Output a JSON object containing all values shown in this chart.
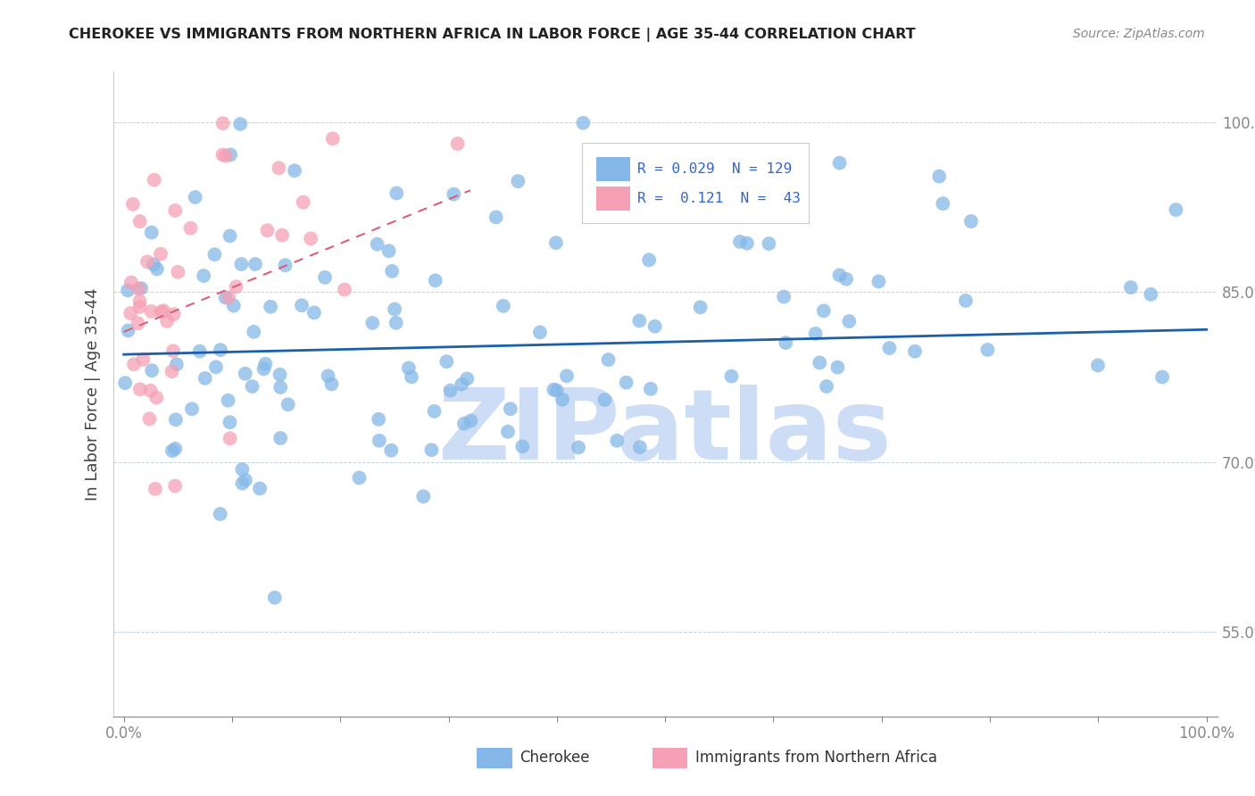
{
  "title": "CHEROKEE VS IMMIGRANTS FROM NORTHERN AFRICA IN LABOR FORCE | AGE 35-44 CORRELATION CHART",
  "source": "Source: ZipAtlas.com",
  "ylabel": "In Labor Force | Age 35-44",
  "xlim": [
    -0.01,
    1.01
  ],
  "ylim": [
    0.475,
    1.045
  ],
  "yticks": [
    0.55,
    0.7,
    0.85,
    1.0
  ],
  "ytick_labels": [
    "55.0%",
    "70.0%",
    "85.0%",
    "100.0%"
  ],
  "xticks": [
    0.0,
    0.1,
    0.2,
    0.3,
    0.4,
    0.5,
    0.6,
    0.7,
    0.8,
    0.9,
    1.0
  ],
  "cherokee_color": "#85b8e8",
  "immigrant_color": "#f5a0b5",
  "trend_blue": "#1a5fa8",
  "trend_pink": "#d9607a",
  "R_cherokee": 0.029,
  "N_cherokee": 129,
  "R_immigrant": 0.121,
  "N_immigrant": 43,
  "watermark": "ZIPatlas",
  "watermark_color": "#ccddf5",
  "legend_label_cherokee": "Cherokee",
  "legend_label_immigrant": "Immigrants from Northern Africa",
  "seed": 12345
}
